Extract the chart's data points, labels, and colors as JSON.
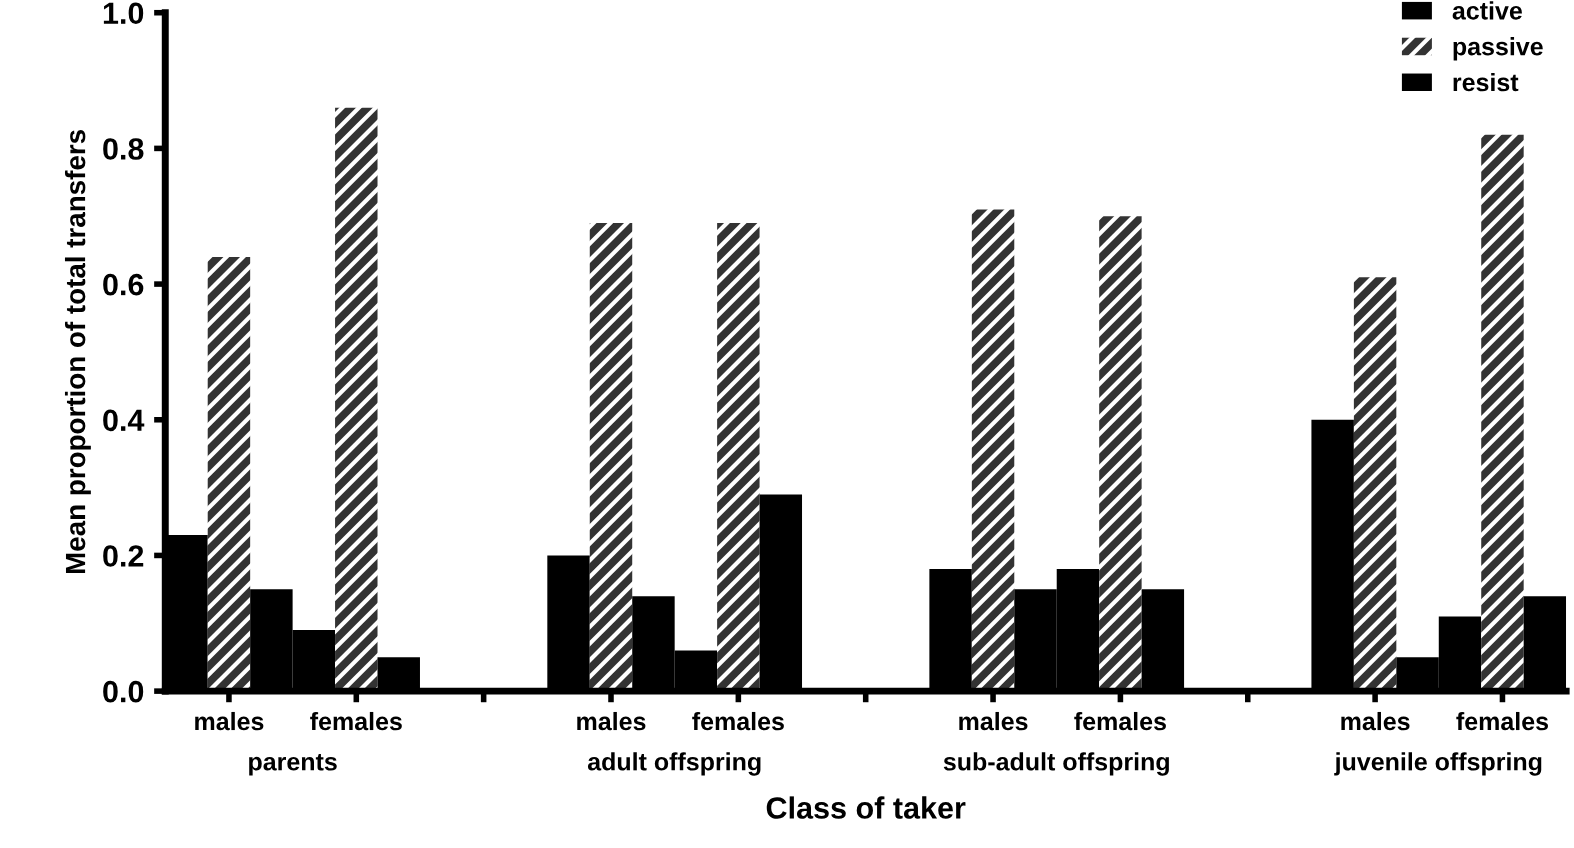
{
  "chart_data": {
    "type": "bar",
    "xlabel": "Class of taker",
    "ylabel": "Mean proportion of total transfers",
    "categories": [
      "males",
      "females",
      null,
      "males",
      "females",
      null,
      "males",
      "females",
      null,
      "males",
      "females"
    ],
    "series": [
      {
        "name": "active",
        "color": "#000000",
        "values": [
          0.23,
          0.09,
          null,
          0.2,
          0.06,
          null,
          0.18,
          0.18,
          null,
          0.4,
          0.11
        ]
      },
      {
        "name": "passive",
        "color": "#333333",
        "values": [
          0.64,
          0.86,
          null,
          0.69,
          0.69,
          null,
          0.71,
          0.7,
          null,
          0.61,
          0.82
        ]
      },
      {
        "name": "resist",
        "color": "#000000",
        "values": [
          0.15,
          0.05,
          null,
          0.14,
          0.29,
          null,
          0.15,
          0.15,
          null,
          0.05,
          0.14
        ]
      }
    ],
    "annotations": [
      "parents",
      "adult offspring",
      "sub-adult offspring",
      "juvenile offspring"
    ],
    "ylim": [
      0,
      1.0
    ],
    "yticks": [
      {
        "value": 0,
        "label": "0.0"
      },
      {
        "value": 0.2,
        "label": "0.2"
      },
      {
        "value": 0.4,
        "label": "0.4"
      },
      {
        "value": 0.6,
        "label": "0.6"
      },
      {
        "value": 0.8,
        "label": "0.8"
      },
      {
        "value": 1.0,
        "label": "1.0"
      }
    ],
    "grid": false,
    "legend": "top right"
  }
}
